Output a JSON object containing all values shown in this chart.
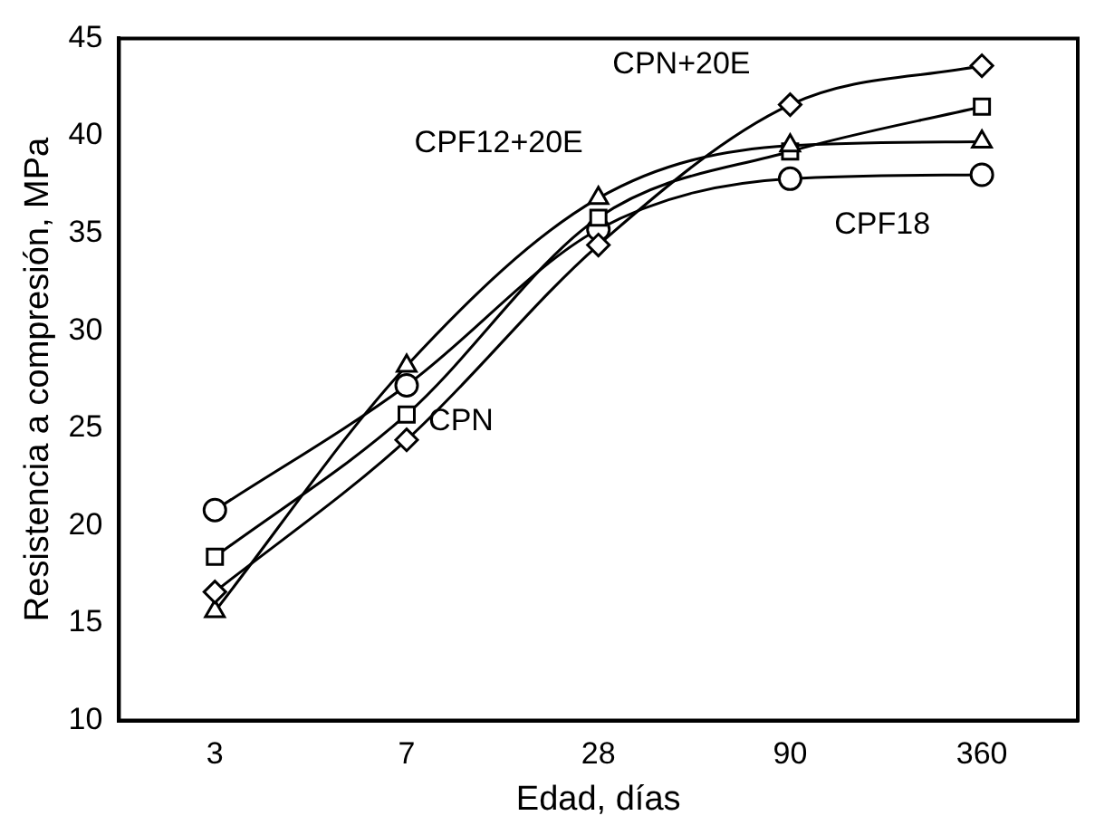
{
  "chart_data": {
    "type": "line",
    "xlabel": "Edad, días",
    "ylabel": "Resistencia a compresión, MPa",
    "categories": [
      "3",
      "7",
      "28",
      "90",
      "360"
    ],
    "ylim": [
      10,
      45
    ],
    "yticks": [
      10,
      15,
      20,
      25,
      30,
      35,
      40,
      45
    ],
    "grid": false,
    "legend": false,
    "series": [
      {
        "name": "CPF18",
        "color": "#000000",
        "marker": "circle",
        "values": [
          20.8,
          27.2,
          35.2,
          37.8,
          38.0
        ]
      },
      {
        "name": "CPN",
        "color": "#000000",
        "marker": "square",
        "values": [
          18.4,
          25.7,
          35.8,
          39.2,
          41.5
        ]
      },
      {
        "name": "CPF12+20E",
        "color": "#000000",
        "marker": "triangle",
        "values": [
          15.6,
          28.2,
          36.8,
          39.5,
          39.7
        ]
      },
      {
        "name": "CPN+20E",
        "color": "#000000",
        "marker": "diamond",
        "values": [
          16.6,
          24.4,
          34.4,
          41.6,
          43.6
        ]
      }
    ]
  }
}
